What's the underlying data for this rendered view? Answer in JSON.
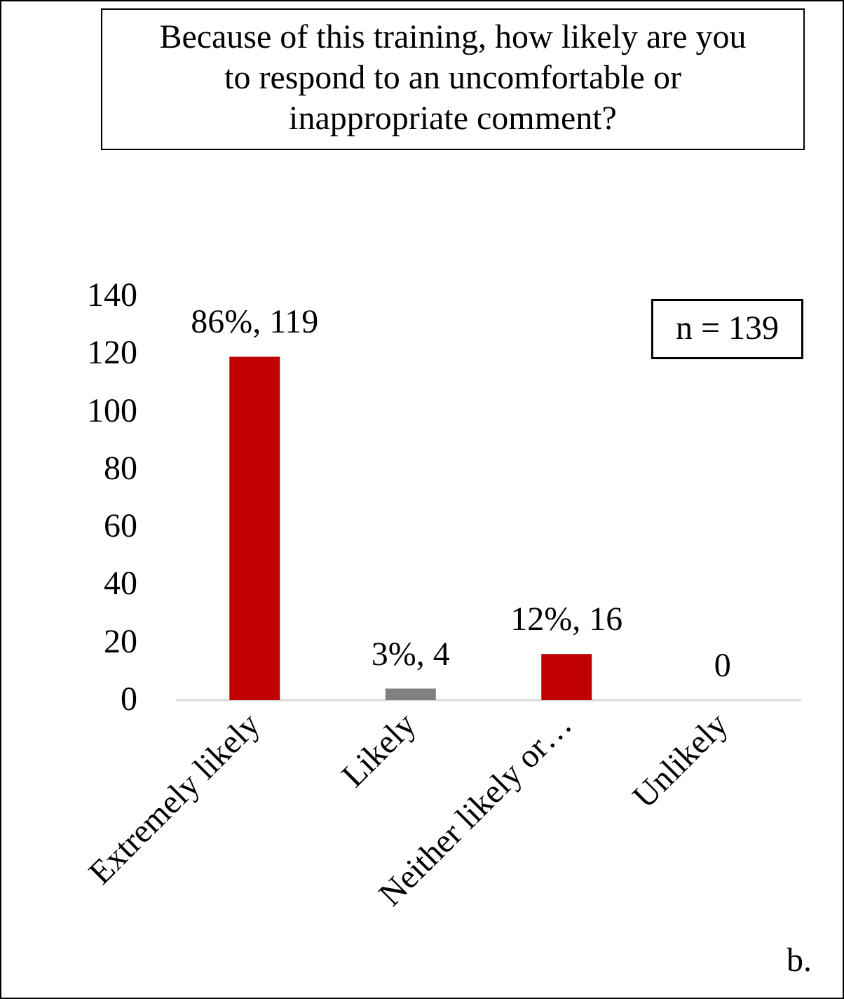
{
  "chart_data": {
    "type": "bar",
    "title": "Because of this training, how likely are you to respond to an uncomfortable or inappropriate comment?",
    "categories": [
      "Extremely likely",
      "Likely",
      "Neither likely or…",
      "Unlikely"
    ],
    "values": [
      119,
      4,
      16,
      0
    ],
    "colors": [
      "#c00000",
      "#808080",
      "#c00000",
      "#c00000"
    ],
    "value_labels": [
      "86%, 119",
      "3%, 4",
      "12%, 16",
      "0"
    ],
    "ylim": [
      0,
      140
    ],
    "yticks": [
      0,
      20,
      40,
      60,
      80,
      100,
      120,
      140
    ],
    "grid": false,
    "annotations": [
      "n = 139",
      "b."
    ]
  }
}
